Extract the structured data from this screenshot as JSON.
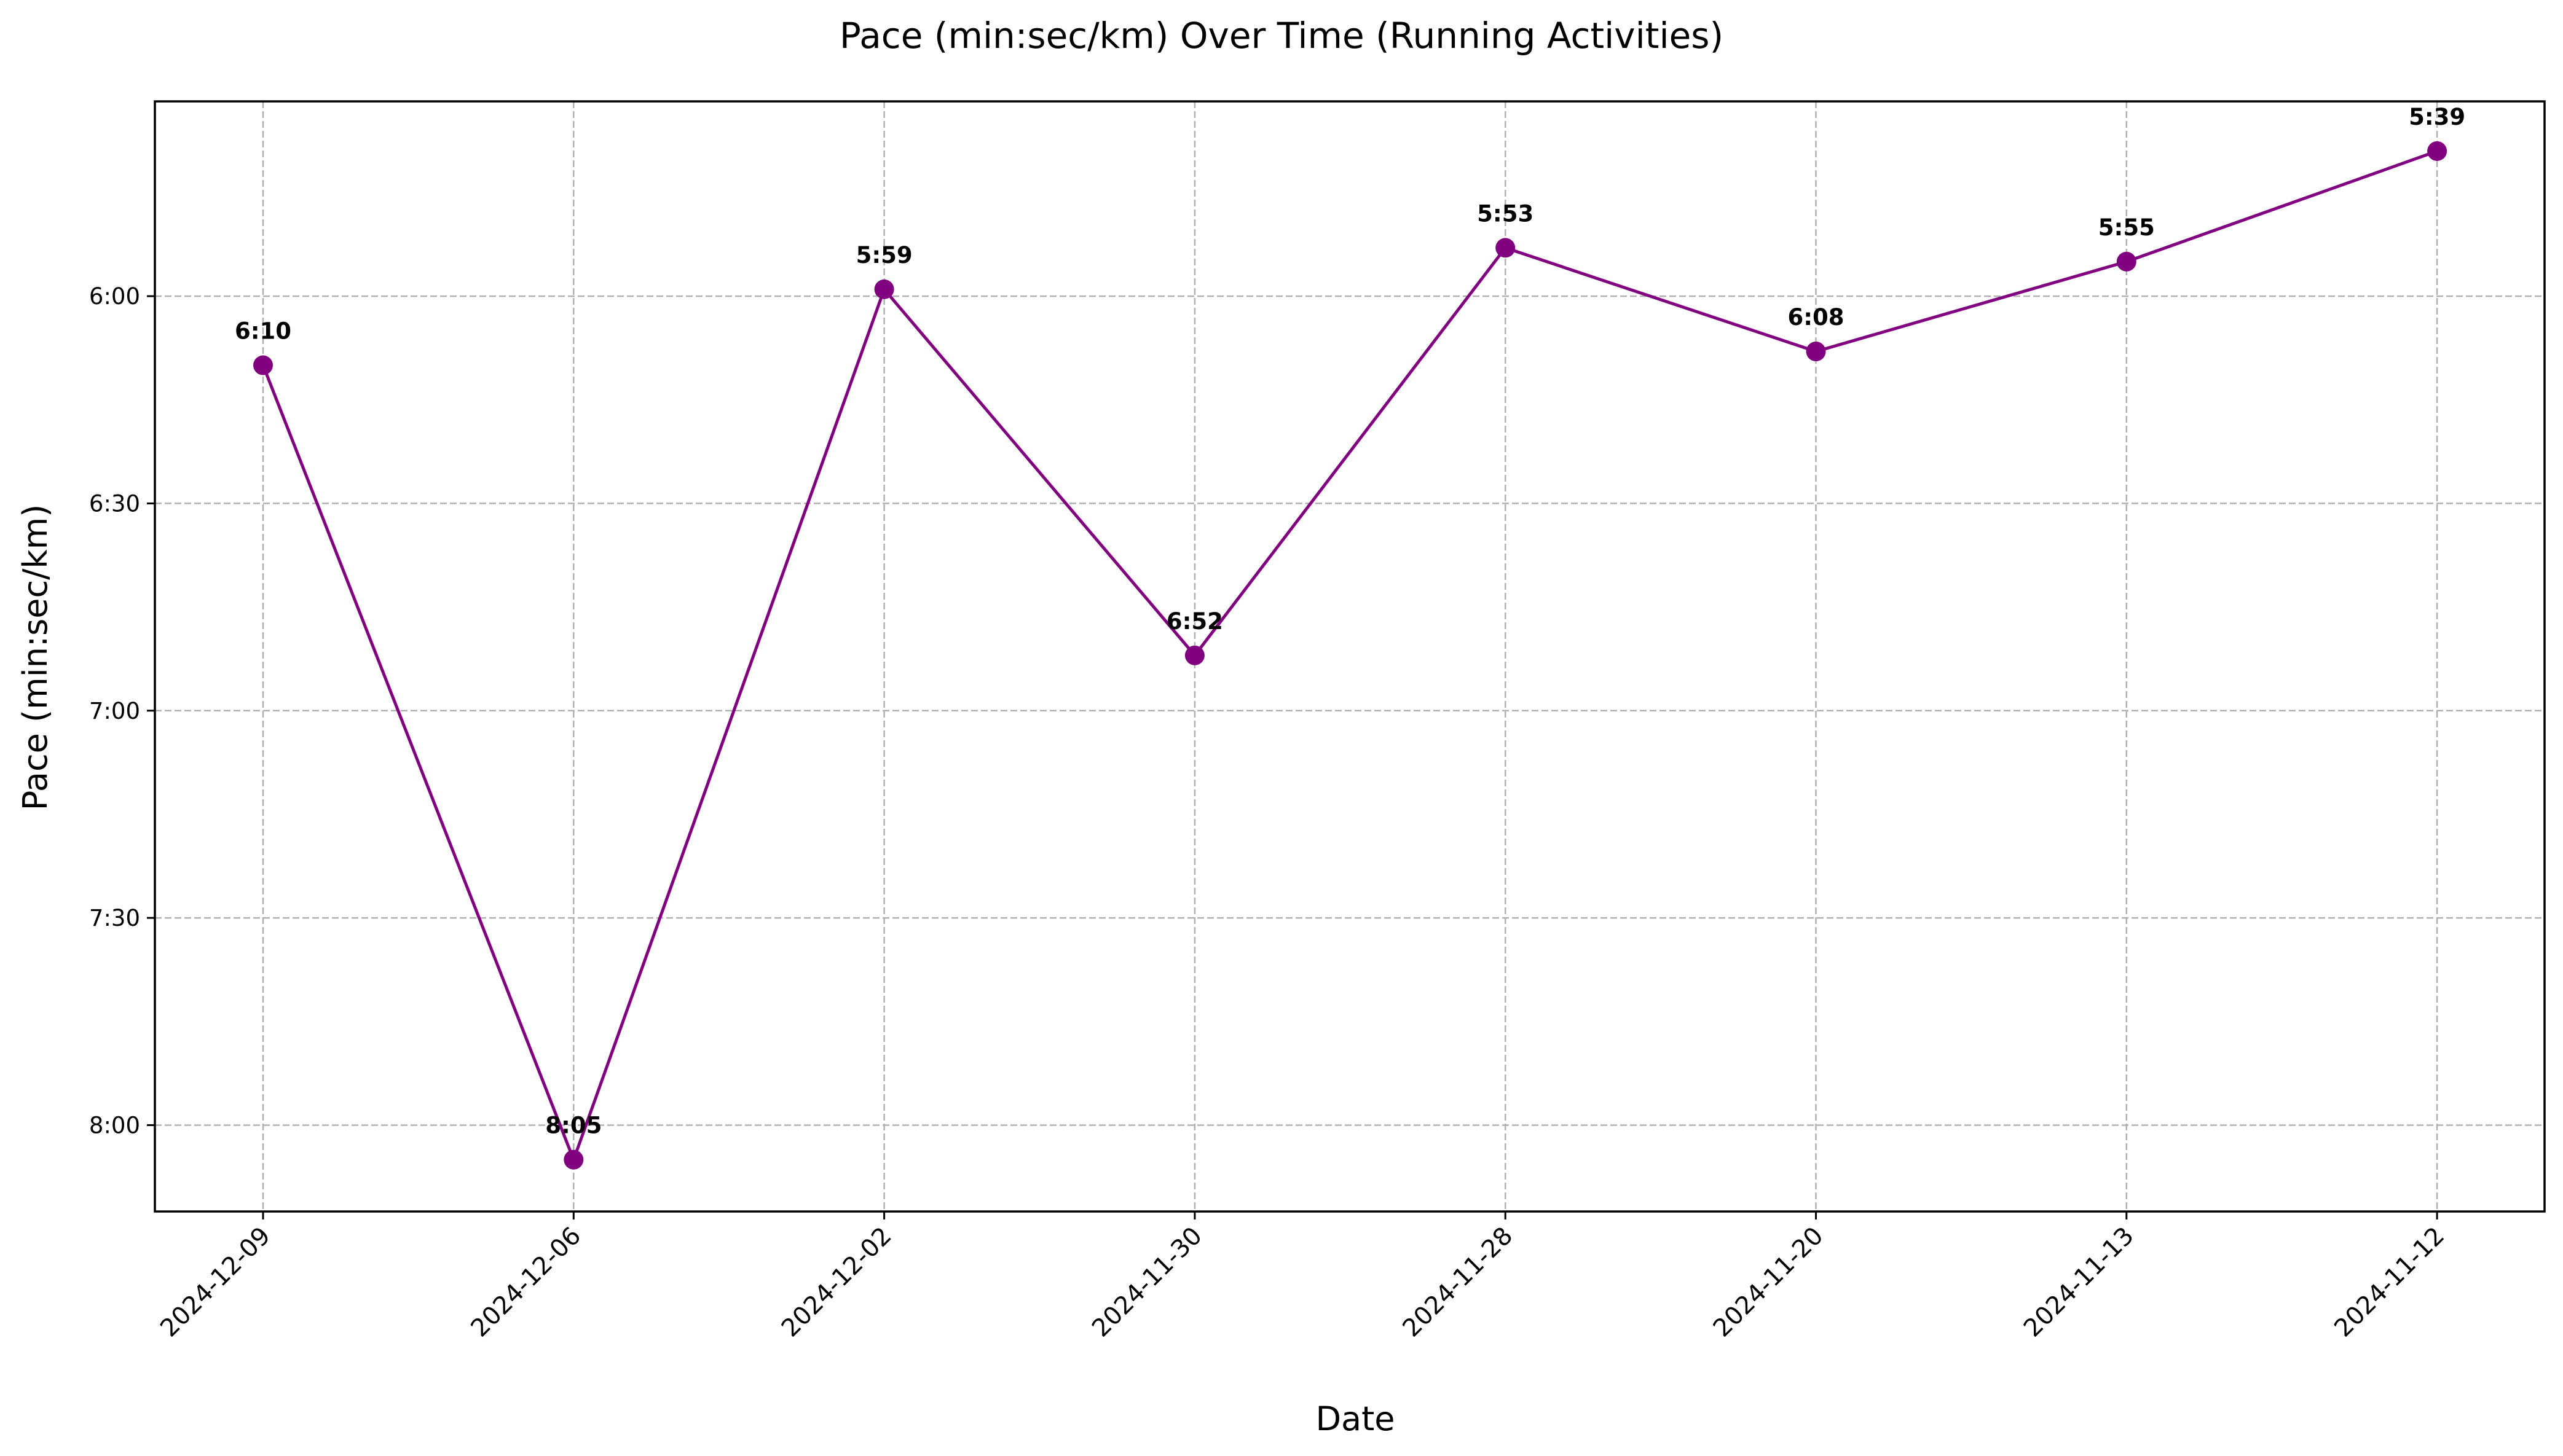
{
  "chart_data": {
    "type": "line",
    "title": "Pace (min:sec/km) Over Time (Running Activities)",
    "xlabel": "Date",
    "ylabel": "Pace (min:sec/km)",
    "categories": [
      "2024-12-09",
      "2024-12-06",
      "2024-12-02",
      "2024-11-30",
      "2024-11-28",
      "2024-11-20",
      "2024-11-13",
      "2024-11-12"
    ],
    "series": [
      {
        "values_seconds": [
          370,
          485,
          359,
          412,
          353,
          368,
          355,
          339
        ],
        "data_labels": [
          "6:10",
          "8:05",
          "5:59",
          "6:52",
          "5:53",
          "6:08",
          "5:55",
          "5:39"
        ],
        "color": "#800080",
        "marker": "circle"
      }
    ],
    "y_axis": {
      "inverted": true,
      "range_seconds": [
        331.8,
        492.5
      ],
      "ticks_seconds": [
        360,
        390,
        420,
        450,
        480
      ],
      "tick_labels": [
        "6:00",
        "6:30",
        "7:00",
        "7:30",
        "8:00"
      ]
    },
    "x_tick_rotation_deg": 45,
    "grid": true,
    "legend": "none"
  }
}
